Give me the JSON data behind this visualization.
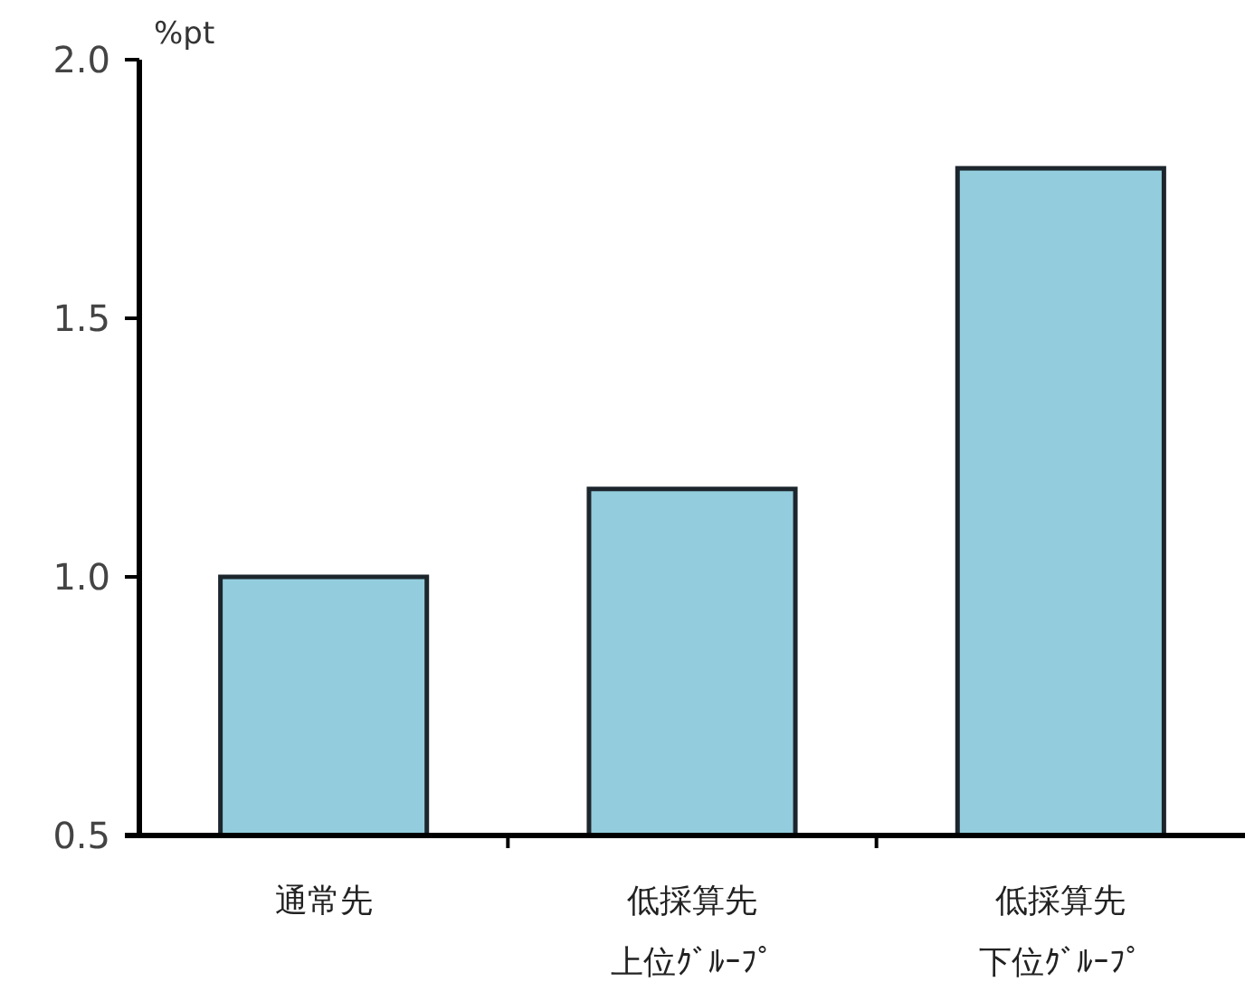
{
  "chart_data": {
    "type": "bar",
    "ylabel": "%pt",
    "categories": [
      "通常先",
      "低採算先上位ｸﾞﾙｰﾌﾟ",
      "低採算先下位ｸﾞﾙｰﾌﾟ"
    ],
    "values": [
      1.0,
      1.17,
      1.79
    ],
    "color": "#93cddd",
    "ylim": [
      0.5,
      2.0
    ],
    "yticks": [
      {
        "value": 0.5,
        "label": "0.5"
      },
      {
        "value": 1.0,
        "label": "1.0"
      },
      {
        "value": 1.5,
        "label": "1.5"
      },
      {
        "value": 2.0,
        "label": "2.0"
      }
    ]
  }
}
